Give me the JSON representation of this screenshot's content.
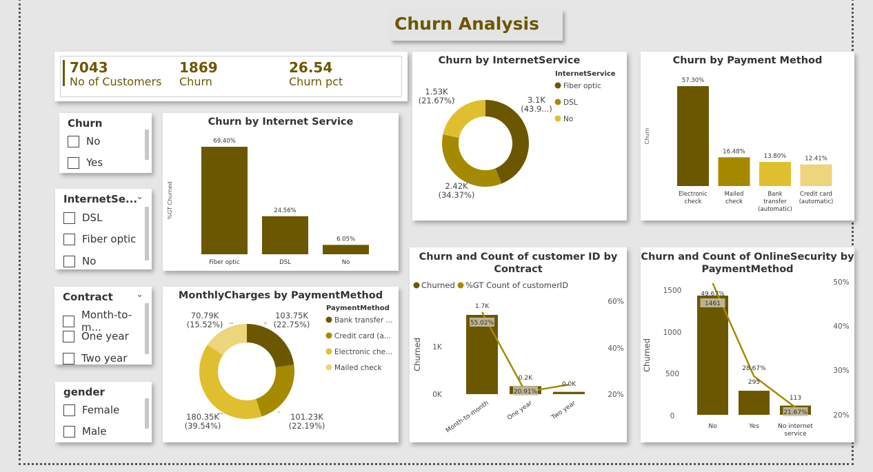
{
  "page_title": "Churn Analysis",
  "kpis": [
    {
      "value": "7043",
      "label": "No of Customers"
    },
    {
      "value": "1869",
      "label": "Churn"
    },
    {
      "value": "26.54",
      "label": "Churn pct"
    }
  ],
  "slicers": {
    "churn": {
      "title": "Churn",
      "options": [
        "No",
        "Yes"
      ]
    },
    "internet": {
      "title": "InternetSe...",
      "options": [
        "DSL",
        "Fiber optic",
        "No"
      ]
    },
    "contract": {
      "title": "Contract",
      "options": [
        "Month-to-m...",
        "One year",
        "Two year"
      ]
    },
    "gender": {
      "title": "gender",
      "options": [
        "Female",
        "Male"
      ]
    }
  },
  "colors": {
    "dark": "#6b5700",
    "mid": "#a58a00",
    "light": "#dfbf2f",
    "pale": "#ecd57a",
    "grey": "#c9c3a8"
  },
  "chart_data": [
    {
      "id": "internet_bar",
      "type": "bar",
      "title": "Churn by Internet Service",
      "ylabel": "%GT Churned",
      "categories": [
        "Fiber optic",
        "DSL",
        "No"
      ],
      "values": [
        69.4,
        24.56,
        6.05
      ],
      "labels": [
        "69.40%",
        "24.56%",
        "6.05%"
      ]
    },
    {
      "id": "internet_donut",
      "type": "pie",
      "title": "Churn by InternetService",
      "legend_title": "InternetService",
      "categories": [
        "Fiber optic",
        "DSL",
        "No"
      ],
      "values": [
        3.1,
        2.42,
        1.53
      ],
      "labels": [
        [
          "3.1K",
          "(43.9...)"
        ],
        [
          "2.42K",
          "(34.37%)"
        ],
        [
          "1.53K",
          "(21.67%)"
        ]
      ]
    },
    {
      "id": "payment_bar",
      "type": "bar",
      "title": "Churn by Payment Method",
      "ylabel": "Churn",
      "categories": [
        [
          "Electronic",
          "check"
        ],
        [
          "Mailed",
          "check"
        ],
        [
          "Bank",
          "transfer",
          "(automatic)"
        ],
        [
          "Credit card",
          "(automatic)"
        ]
      ],
      "values": [
        57.3,
        16.48,
        13.8,
        12.41
      ],
      "labels": [
        "57.30%",
        "16.48%",
        "13.80%",
        "12.41%"
      ]
    },
    {
      "id": "monthly_donut",
      "type": "pie",
      "title": "MonthlyCharges by PaymentMethod",
      "legend_title": "PaymentMethod",
      "categories": [
        "Bank transfer ...",
        "Credit card (a...",
        "Electronic che...",
        "Mailed check"
      ],
      "values": [
        103.75,
        101.23,
        180.35,
        70.79
      ],
      "labels": [
        [
          "103.75K",
          "(22.75%)"
        ],
        [
          "101.23K",
          "(22.19%)"
        ],
        [
          "180.35K",
          "(39.54%)"
        ],
        [
          "70.79K",
          "(15.52%)"
        ]
      ]
    },
    {
      "id": "contract_combo",
      "type": "bar",
      "title": [
        "Churn and Count of customer ID by",
        "Contract"
      ],
      "legend": [
        "Churned",
        "%GT Count of customerID"
      ],
      "ylabel": "Churned",
      "categories": [
        "Month-to-month",
        "One year",
        "Two year"
      ],
      "bar_values": [
        1655,
        166,
        48
      ],
      "bar_labels": [
        "1.7K",
        "0.2K",
        "0.0K"
      ],
      "line_values": [
        55.02,
        20.91,
        24.07
      ],
      "line_labels": [
        "55.02%",
        "20.91%",
        ""
      ],
      "left_ticks": [
        "0K",
        "1K"
      ],
      "right_ticks": [
        "20%",
        "40%",
        "60%"
      ]
    },
    {
      "id": "security_combo",
      "type": "bar",
      "title": [
        "Churn and Count of OnlineSecurity by",
        "PaymentMethod"
      ],
      "ylabel": "Churned",
      "categories": [
        "No",
        "Yes",
        [
          "No internet",
          "service"
        ]
      ],
      "bar_values": [
        1461,
        295,
        113
      ],
      "bar_labels": [
        "1461",
        "295",
        "113"
      ],
      "line_values": [
        49.67,
        28.67,
        21.67
      ],
      "line_labels": [
        "49.67%",
        "28.67%",
        "21.67%"
      ],
      "left_ticks": [
        "0",
        "500",
        "1000",
        "1500"
      ],
      "right_ticks": [
        "20%",
        "30%",
        "40%",
        "50%"
      ]
    }
  ]
}
